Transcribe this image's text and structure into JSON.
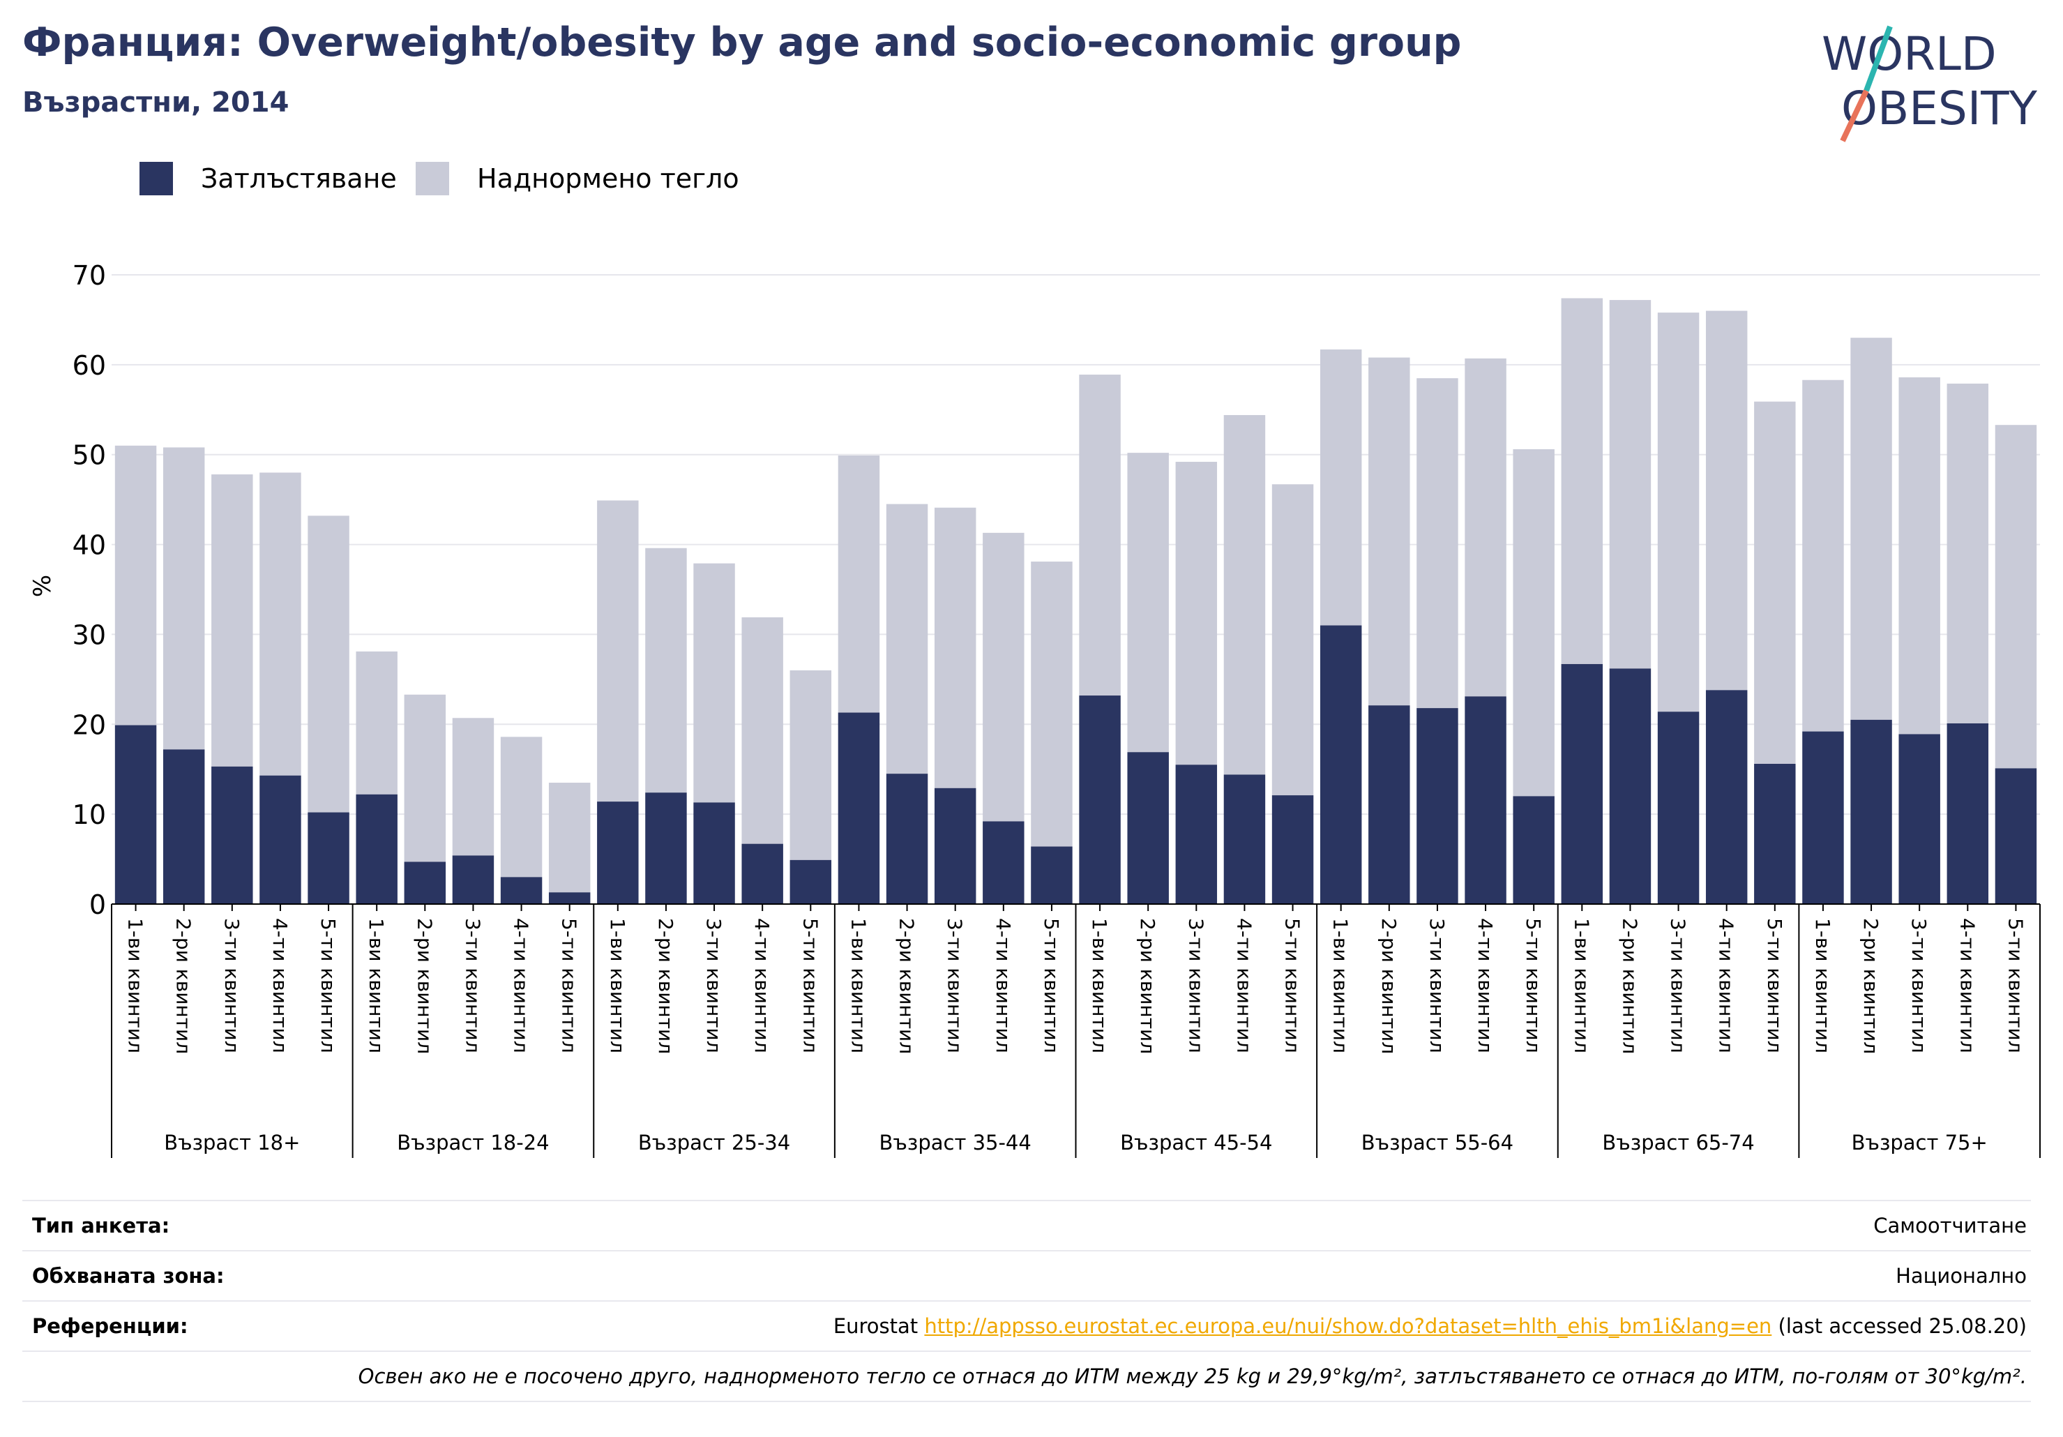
{
  "header": {
    "title": "Франция: Overweight/obesity by age and socio-economic group",
    "subtitle": "Възрастни, 2014"
  },
  "logo": {
    "line1": "WORLD",
    "line2": "OBESITY"
  },
  "colors": {
    "obesity": "#2a3561",
    "overweight": "#c9cbd8",
    "title": "#2a3561",
    "link": "#f0a800",
    "logo_teal": "#2bb5b0",
    "logo_coral": "#e8735a"
  },
  "chart_data": {
    "type": "bar",
    "stacked": true,
    "ylabel": "%",
    "ylim": [
      0,
      70
    ],
    "yticks": [
      0,
      10,
      20,
      30,
      40,
      50,
      60,
      70
    ],
    "grid": true,
    "legend_position": "top-left",
    "groups": [
      "Възраст 18+",
      "Възраст 18-24",
      "Възраст 25-34",
      "Възраст 35-44",
      "Възраст 45-54",
      "Възраст 55-64",
      "Възраст 65-74",
      "Възраст 75+"
    ],
    "categories": [
      "1-ви квинтил",
      "2-ри квинтил",
      "3-ти квинтил",
      "4-ти квинтил",
      "5-ти квинтил"
    ],
    "series": [
      {
        "name": "Затлъстяване",
        "values": [
          [
            19.9,
            17.2,
            15.3,
            14.3,
            10.2
          ],
          [
            12.2,
            4.7,
            5.4,
            3.0,
            1.3
          ],
          [
            11.4,
            12.4,
            11.3,
            6.7,
            4.9
          ],
          [
            21.3,
            14.5,
            12.9,
            9.2,
            6.4
          ],
          [
            23.2,
            16.9,
            15.5,
            14.4,
            12.1
          ],
          [
            31.0,
            22.1,
            21.8,
            23.1,
            12.0
          ],
          [
            26.7,
            26.2,
            21.4,
            23.8,
            15.6
          ],
          [
            19.2,
            20.5,
            18.9,
            20.1,
            15.1
          ]
        ]
      },
      {
        "name": "Наднормено тегло",
        "values": [
          [
            31.1,
            33.6,
            32.5,
            33.7,
            33.0
          ],
          [
            15.9,
            18.6,
            15.3,
            15.6,
            12.2
          ],
          [
            33.5,
            27.2,
            26.6,
            25.2,
            21.1
          ],
          [
            28.6,
            30.0,
            31.2,
            32.1,
            31.7
          ],
          [
            35.7,
            33.3,
            33.7,
            40.0,
            34.6
          ],
          [
            30.7,
            38.7,
            36.7,
            37.6,
            38.6
          ],
          [
            40.7,
            41.0,
            44.4,
            42.2,
            40.3
          ],
          [
            39.1,
            42.5,
            39.7,
            37.8,
            38.2
          ]
        ]
      }
    ]
  },
  "footer": {
    "survey_type_label": "Тип анкета:",
    "survey_type_value": "Самоотчитане",
    "area_label": "Обхваната зона:",
    "area_value": "Национално",
    "refs_label": "Референции:",
    "refs_source": "Eurostat",
    "refs_link": "http://appsso.eurostat.ec.europa.eu/nui/show.do?dataset=hlth_ehis_bm1i&lang=en",
    "refs_accessed": "(last accessed 25.08.20)",
    "note": "Освен ако не е посочено друго, наднорменото тегло се отнася до ИТМ между 25 kg и 29,9°kg/m², затлъстяването се отнася до ИТМ, по-голям от 30°kg/m²."
  }
}
